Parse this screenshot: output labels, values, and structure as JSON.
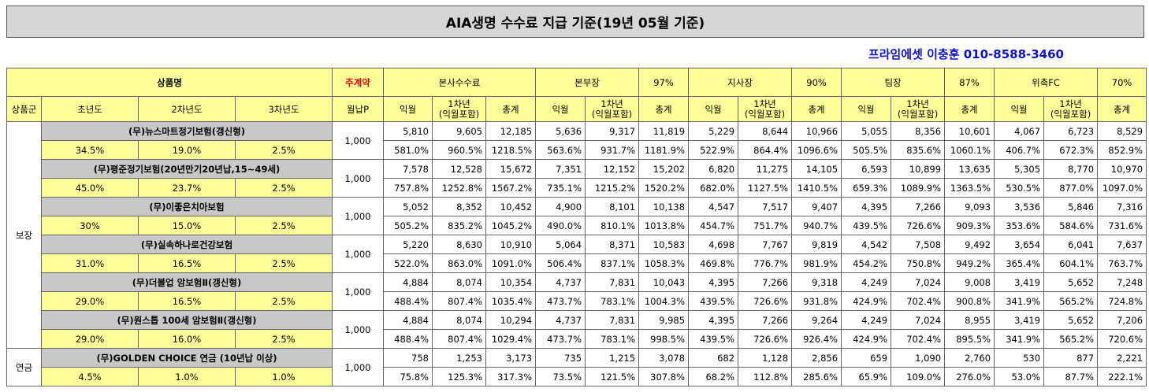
{
  "title": "AIA생명 수수료 지급 기준(19년 05월 기준)",
  "contact": "프라임에셋 이충훈 010-8588-3460",
  "headers": {
    "product_name": "상품명",
    "contract": "주계약",
    "monthly_premium": "월납P",
    "group": "상품군",
    "year1": "초년도",
    "year2": "2차년도",
    "year3": "3차년도",
    "tiers": [
      {
        "name": "본사수수료",
        "pct": ""
      },
      {
        "name": "본부장",
        "pct": "97%"
      },
      {
        "name": "지사장",
        "pct": "90%"
      },
      {
        "name": "팀장",
        "pct": "87%"
      },
      {
        "name": "위촉FC",
        "pct": "70%"
      }
    ],
    "sub_next": "익월",
    "sub_first_line1": "1차년",
    "sub_first_line2": "(익월포함)",
    "sub_total": "총계"
  },
  "groups": [
    {
      "name": "보장",
      "rows": 6
    },
    {
      "name": "연금",
      "rows": 1
    }
  ],
  "products": [
    {
      "name": "(무)뉴스마트정기보험(갱신형)",
      "y1": "34.5%",
      "y2": "19.0%",
      "y3": "2.5%",
      "premium": "1,000",
      "amounts": [
        "5,810",
        "9,605",
        "12,185",
        "5,636",
        "9,317",
        "11,819",
        "5,229",
        "8,644",
        "10,966",
        "5,055",
        "8,356",
        "10,601",
        "4,067",
        "6,723",
        "8,529"
      ],
      "rates": [
        "581.0%",
        "960.5%",
        "1218.5%",
        "563.6%",
        "931.7%",
        "1181.9%",
        "522.9%",
        "864.4%",
        "1096.6%",
        "505.5%",
        "835.6%",
        "1060.1%",
        "406.7%",
        "672.3%",
        "852.9%"
      ]
    },
    {
      "name": "(무)평준정기보험(20년만기20년납,15~49세)",
      "y1": "45.0%",
      "y2": "23.7%",
      "y3": "2.5%",
      "premium": "1,000",
      "amounts": [
        "7,578",
        "12,528",
        "15,672",
        "7,351",
        "12,152",
        "15,202",
        "6,820",
        "11,275",
        "14,105",
        "6,593",
        "10,899",
        "13,635",
        "5,305",
        "8,770",
        "10,970"
      ],
      "rates": [
        "757.8%",
        "1252.8%",
        "1567.2%",
        "735.1%",
        "1215.2%",
        "1520.2%",
        "682.0%",
        "1127.5%",
        "1410.5%",
        "659.3%",
        "1089.9%",
        "1363.5%",
        "530.5%",
        "877.0%",
        "1097.0%"
      ]
    },
    {
      "name": "(무)이좋은치아보험",
      "y1": "30%",
      "y2": "15.0%",
      "y3": "2.5%",
      "premium": "1,000",
      "amounts": [
        "5,052",
        "8,352",
        "10,452",
        "4,900",
        "8,101",
        "10,138",
        "4,547",
        "7,517",
        "9,407",
        "4,395",
        "7,266",
        "9,093",
        "3,536",
        "5,846",
        "7,316"
      ],
      "rates": [
        "505.2%",
        "835.2%",
        "1045.2%",
        "490.0%",
        "810.1%",
        "1013.8%",
        "454.7%",
        "751.7%",
        "940.7%",
        "439.5%",
        "726.6%",
        "909.3%",
        "353.6%",
        "584.6%",
        "731.6%"
      ]
    },
    {
      "name": "(무)실속하나로건강보험",
      "y1": "31.0%",
      "y2": "16.5%",
      "y3": "2.5%",
      "premium": "1,000",
      "amounts": [
        "5,220",
        "8,630",
        "10,910",
        "5,064",
        "8,371",
        "10,583",
        "4,698",
        "7,767",
        "9,819",
        "4,542",
        "7,508",
        "9,492",
        "3,654",
        "6,041",
        "7,637"
      ],
      "rates": [
        "522.0%",
        "863.0%",
        "1091.0%",
        "506.4%",
        "837.1%",
        "1058.3%",
        "469.8%",
        "776.7%",
        "981.9%",
        "454.2%",
        "750.8%",
        "949.2%",
        "365.4%",
        "604.1%",
        "763.7%"
      ]
    },
    {
      "name": "(무)더블업 암보험Ⅱ(갱신형)",
      "y1": "29.0%",
      "y2": "16.5%",
      "y3": "2.5%",
      "premium": "1,000",
      "amounts": [
        "4,884",
        "8,074",
        "10,354",
        "4,737",
        "7,831",
        "10,043",
        "4,395",
        "7,266",
        "9,318",
        "4,249",
        "7,024",
        "9,008",
        "3,419",
        "5,652",
        "7,248"
      ],
      "rates": [
        "488.4%",
        "807.4%",
        "1035.4%",
        "473.7%",
        "783.1%",
        "1004.3%",
        "439.5%",
        "726.6%",
        "931.8%",
        "424.9%",
        "702.4%",
        "900.8%",
        "341.9%",
        "565.2%",
        "724.8%"
      ]
    },
    {
      "name": "(무)원스톱 100세 암보험Ⅱ(갱신형)",
      "y1": "29.0%",
      "y2": "16.0%",
      "y3": "2.5%",
      "premium": "1,000",
      "amounts": [
        "4,884",
        "8,074",
        "10,294",
        "4,737",
        "7,831",
        "9,985",
        "4,395",
        "7,266",
        "9,264",
        "4,249",
        "7,024",
        "8,955",
        "3,419",
        "5,652",
        "7,206"
      ],
      "rates": [
        "488.4%",
        "807.4%",
        "1029.4%",
        "473.7%",
        "783.1%",
        "998.5%",
        "439.5%",
        "726.6%",
        "926.4%",
        "424.9%",
        "702.4%",
        "895.5%",
        "341.9%",
        "565.2%",
        "720.6%"
      ]
    },
    {
      "name": "(무)GOLDEN CHOICE 연금 (10년납 이상)",
      "y1": "4.5%",
      "y2": "1.0%",
      "y3": "1.0%",
      "premium": "1,000",
      "amounts": [
        "758",
        "1,253",
        "3,173",
        "735",
        "1,215",
        "3,078",
        "682",
        "1,128",
        "2,856",
        "659",
        "1,090",
        "2,760",
        "530",
        "877",
        "2,221"
      ],
      "rates": [
        "75.8%",
        "125.3%",
        "317.3%",
        "73.5%",
        "121.5%",
        "307.8%",
        "68.2%",
        "112.8%",
        "285.6%",
        "65.9%",
        "109.0%",
        "276.0%",
        "53.0%",
        "87.7%",
        "222.1%"
      ]
    }
  ]
}
